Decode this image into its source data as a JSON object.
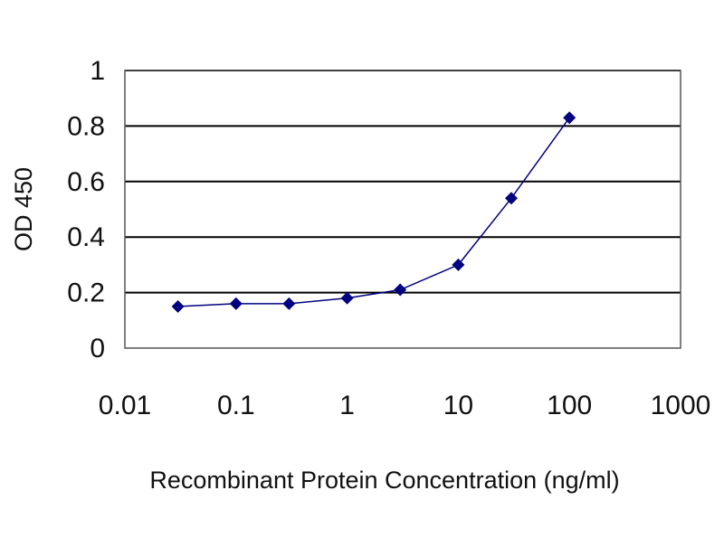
{
  "chart_data": {
    "type": "scatter",
    "title": "",
    "xlabel": "Recombinant Protein Concentration (ng/ml)",
    "ylabel": "OD 450",
    "x_scale": "log",
    "xlim": [
      0.01,
      1000
    ],
    "ylim": [
      0,
      1
    ],
    "x_ticks": [
      "0.01",
      "0.1",
      "1",
      "10",
      "100",
      "1000"
    ],
    "y_ticks": [
      "0",
      "0.2",
      "0.4",
      "0.6",
      "0.8",
      "1"
    ],
    "grid": "horizontal",
    "legend": "none",
    "series": [
      {
        "x": [
          0.03,
          0.1,
          0.3,
          1,
          3,
          10,
          30,
          100
        ],
        "y": [
          0.15,
          0.16,
          0.16,
          0.18,
          0.21,
          0.3,
          0.54,
          0.83
        ],
        "color": "#000080",
        "marker": "diamond"
      }
    ]
  }
}
